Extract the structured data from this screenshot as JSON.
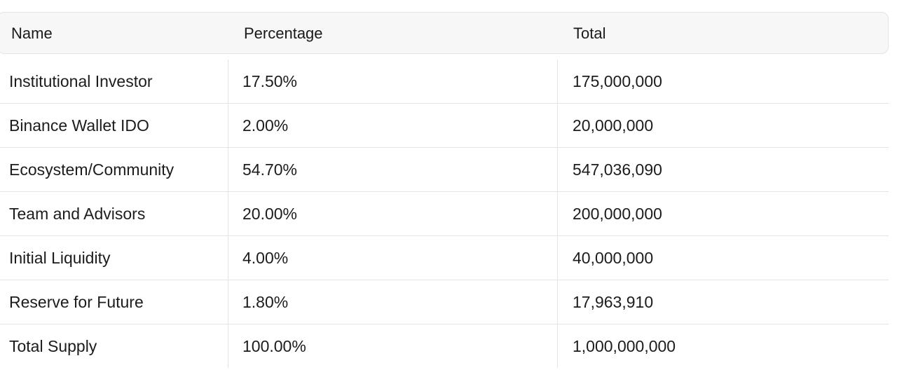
{
  "table": {
    "headers": {
      "name": "Name",
      "percentage": "Percentage",
      "total": "Total"
    },
    "rows": [
      {
        "name": "Institutional Investor",
        "percentage": "17.50%",
        "total": "175,000,000"
      },
      {
        "name": "Binance Wallet IDO",
        "percentage": "2.00%",
        "total": "20,000,000"
      },
      {
        "name": "Ecosystem/Community",
        "percentage": "54.70%",
        "total": "547,036,090"
      },
      {
        "name": "Team and Advisors",
        "percentage": "20.00%",
        "total": "200,000,000"
      },
      {
        "name": "Initial Liquidity",
        "percentage": "4.00%",
        "total": "40,000,000"
      },
      {
        "name": "Reserve for Future",
        "percentage": "1.80%",
        "total": "17,963,910"
      },
      {
        "name": "Total Supply",
        "percentage": "100.00%",
        "total": "1,000,000,000"
      }
    ]
  },
  "colors": {
    "header_bg": "#f7f7f8",
    "border": "#e4e4e7",
    "text": "#1c1c1c"
  }
}
